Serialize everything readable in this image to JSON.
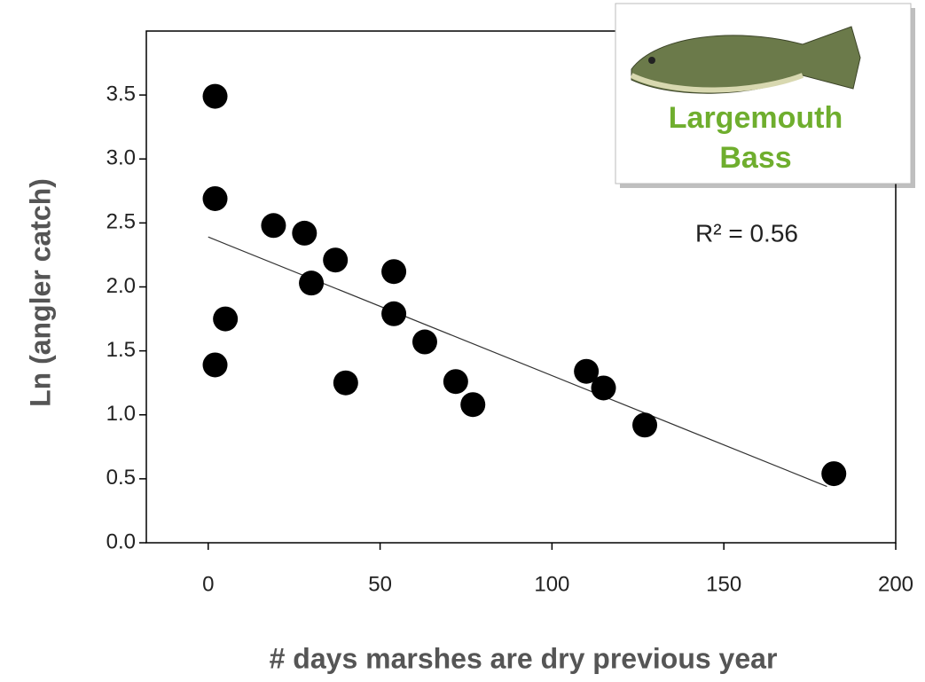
{
  "chart_data": {
    "type": "scatter",
    "x_label": "# days marshes are dry previous year",
    "y_label": "Ln (angler catch)",
    "annotation": "R² = 0.56",
    "inset_label": [
      "Largemouth",
      "Bass"
    ],
    "xlim": [
      -18,
      200
    ],
    "ylim": [
      0,
      4.0
    ],
    "xticks": [
      0,
      50,
      100,
      150,
      200
    ],
    "yticks": [
      {
        "value": 0,
        "label": "0.0"
      },
      0.5,
      {
        "value": 1,
        "label": "1.0"
      },
      1.5,
      {
        "value": 2,
        "label": "2.0"
      },
      2.5,
      {
        "value": 3,
        "label": "3.0"
      },
      3.5
    ],
    "color": "#000000",
    "x": [
      2,
      2,
      2,
      5,
      19,
      28,
      30,
      37,
      40,
      54,
      54,
      63,
      72,
      77,
      110,
      115,
      127,
      182
    ],
    "values": [
      3.49,
      2.69,
      1.39,
      1.75,
      2.48,
      2.42,
      2.03,
      2.21,
      1.25,
      2.12,
      1.79,
      1.57,
      1.26,
      1.08,
      1.34,
      1.21,
      0.92,
      0.54
    ],
    "trendline": {
      "x": [
        0,
        180
      ],
      "y": [
        2.39,
        0.44
      ]
    }
  }
}
